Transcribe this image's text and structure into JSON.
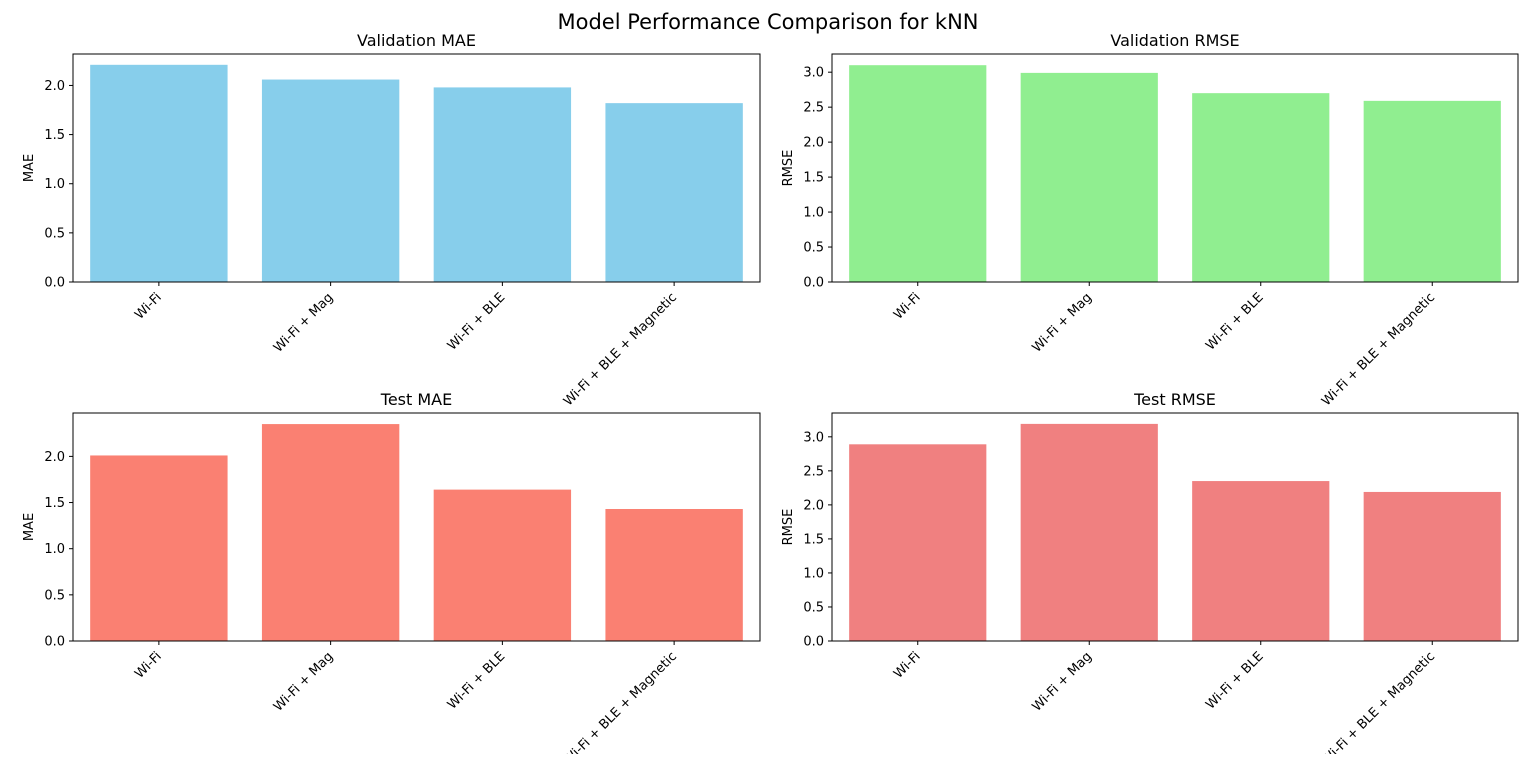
{
  "figure": {
    "title": "Model Performance Comparison for kNN"
  },
  "chart_data": [
    {
      "type": "bar",
      "title": "Validation MAE",
      "xlabel": "",
      "ylabel": "MAE",
      "categories": [
        "Wi-Fi",
        "Wi-Fi + Mag",
        "Wi-Fi + BLE",
        "Wi-Fi + BLE + Magnetic"
      ],
      "values": [
        2.21,
        2.06,
        1.98,
        1.82
      ],
      "ylim": [
        0,
        2.32
      ],
      "yticks": [
        "0.0",
        "0.5",
        "1.0",
        "1.5",
        "2.0"
      ],
      "color": "#87ceeb"
    },
    {
      "type": "bar",
      "title": "Validation RMSE",
      "xlabel": "",
      "ylabel": "RMSE",
      "categories": [
        "Wi-Fi",
        "Wi-Fi + Mag",
        "Wi-Fi + BLE",
        "Wi-Fi + BLE + Magnetic"
      ],
      "values": [
        3.1,
        2.99,
        2.7,
        2.59
      ],
      "ylim": [
        0,
        3.26
      ],
      "yticks": [
        "0.0",
        "0.5",
        "1.0",
        "1.5",
        "2.0",
        "2.5",
        "3.0"
      ],
      "color": "#90ee90"
    },
    {
      "type": "bar",
      "title": "Test MAE",
      "xlabel": "",
      "ylabel": "MAE",
      "categories": [
        "Wi-Fi",
        "Wi-Fi + Mag",
        "Wi-Fi + BLE",
        "Wi-Fi + BLE + Magnetic"
      ],
      "values": [
        2.01,
        2.35,
        1.64,
        1.43
      ],
      "ylim": [
        0,
        2.47
      ],
      "yticks": [
        "0.0",
        "0.5",
        "1.0",
        "1.5",
        "2.0"
      ],
      "color": "#fa8072"
    },
    {
      "type": "bar",
      "title": "Test RMSE",
      "xlabel": "",
      "ylabel": "RMSE",
      "categories": [
        "Wi-Fi",
        "Wi-Fi + Mag",
        "Wi-Fi + BLE",
        "Wi-Fi + BLE + Magnetic"
      ],
      "values": [
        2.89,
        3.19,
        2.35,
        2.19
      ],
      "ylim": [
        0,
        3.35
      ],
      "yticks": [
        "0.0",
        "0.5",
        "1.0",
        "1.5",
        "2.0",
        "2.5",
        "3.0"
      ],
      "color": "#f08080"
    }
  ]
}
